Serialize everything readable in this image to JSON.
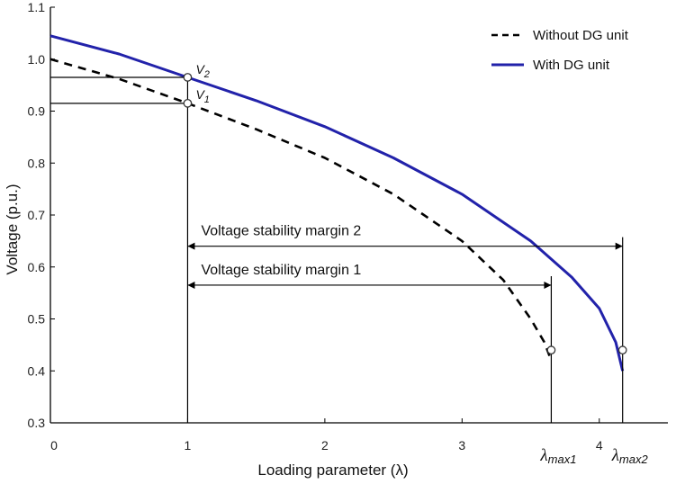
{
  "chart_data": {
    "type": "line",
    "xlabel": "Loading parameter (λ)",
    "ylabel": "Voltage (p.u.)",
    "xlim": [
      0,
      4.5
    ],
    "ylim": [
      0.3,
      1.1
    ],
    "xticks": [
      "0",
      "1",
      "2",
      "3",
      "4"
    ],
    "yticks": [
      "0.3",
      "0.4",
      "0.5",
      "0.6",
      "0.7",
      "0.8",
      "0.9",
      "1.0",
      "1.1"
    ],
    "legend_position": "top-right",
    "series": [
      {
        "name": "Without DG unit",
        "style": "dashed",
        "color": "#000000",
        "x": [
          0,
          0.5,
          1.0,
          1.5,
          2.0,
          2.5,
          3.0,
          3.3,
          3.5,
          3.6,
          3.65
        ],
        "y": [
          1.0,
          0.962,
          0.915,
          0.865,
          0.81,
          0.74,
          0.65,
          0.575,
          0.5,
          0.455,
          0.42
        ]
      },
      {
        "name": "With DG unit",
        "style": "solid",
        "color": "#2222aa",
        "x": [
          0,
          0.5,
          1.0,
          1.5,
          2.0,
          2.5,
          3.0,
          3.5,
          3.8,
          4.0,
          4.12,
          4.17
        ],
        "y": [
          1.045,
          1.01,
          0.965,
          0.92,
          0.87,
          0.81,
          0.74,
          0.65,
          0.58,
          0.52,
          0.455,
          0.4
        ]
      }
    ],
    "markers": [
      {
        "label": "V",
        "sub": "2",
        "x": 1.0,
        "y": 0.965
      },
      {
        "label": "V",
        "sub": "1",
        "x": 1.0,
        "y": 0.915
      },
      {
        "x": 3.65,
        "y": 0.44
      },
      {
        "x": 4.17,
        "y": 0.44
      }
    ],
    "annotations": [
      {
        "text": "Voltage stability margin 2",
        "from_x": 1.0,
        "to_x": 4.17,
        "y": 0.64
      },
      {
        "text": "Voltage stability margin 1",
        "from_x": 1.0,
        "to_x": 3.65,
        "y": 0.565
      }
    ],
    "lambda_labels": [
      {
        "label": "λ",
        "sub": "max1",
        "x": 3.65
      },
      {
        "label": "λ",
        "sub": "max2",
        "x": 4.17
      }
    ]
  }
}
